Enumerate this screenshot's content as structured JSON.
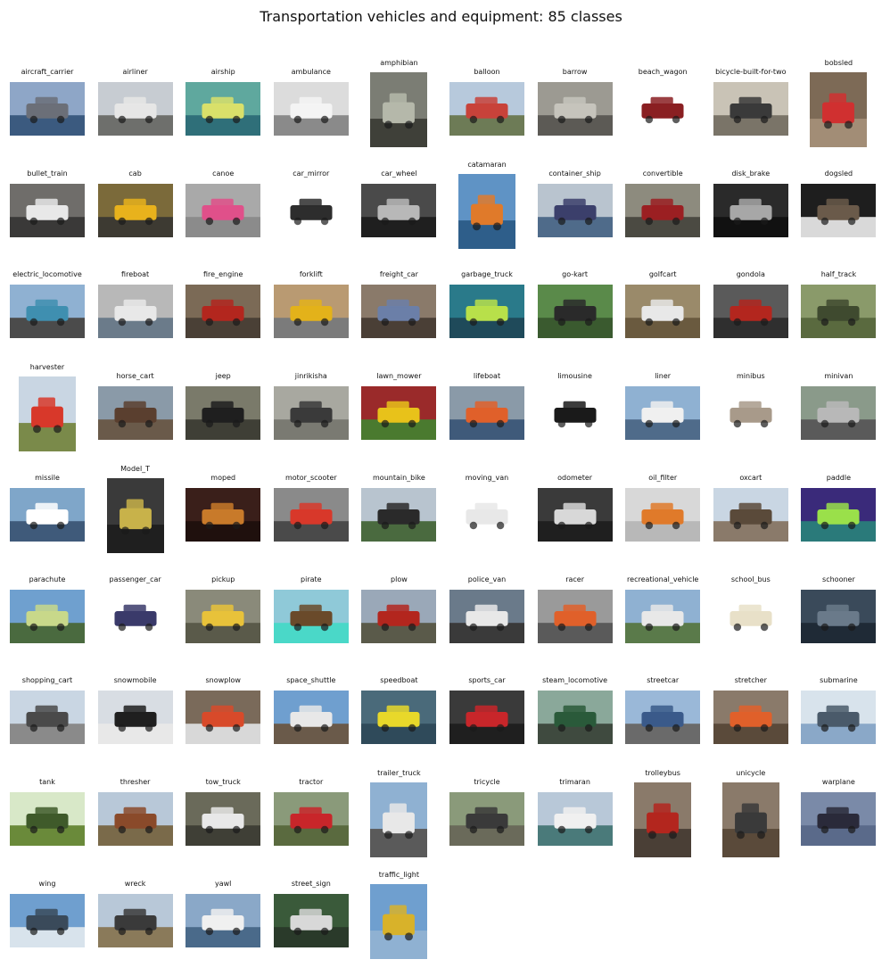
{
  "figure": {
    "title": "Transportation vehicles and equipment: 85 classes"
  },
  "grid": {
    "columns": 10,
    "items": [
      {
        "label": "aircraft_carrier",
        "shape": "wide",
        "sky": "#8ea6c7",
        "ground": "#3b5a7f",
        "subject": "#6b6f78",
        "icon": "ship-icon"
      },
      {
        "label": "airliner",
        "shape": "wide",
        "sky": "#c7ccd2",
        "ground": "#6e6f6c",
        "subject": "#e6e6e6",
        "icon": "airplane-icon"
      },
      {
        "label": "airship",
        "shape": "wide",
        "sky": "#5fa89e",
        "ground": "#2f6f79",
        "subject": "#d9e06a",
        "icon": "blimp-icon"
      },
      {
        "label": "ambulance",
        "shape": "wide",
        "sky": "#dcdcdc",
        "ground": "#8a8a8a",
        "subject": "#f4f4f4",
        "icon": "van-icon"
      },
      {
        "label": "amphibian",
        "shape": "tall",
        "sky": "#7b7d74",
        "ground": "#3f4039",
        "subject": "#b5b8aa",
        "icon": "boat-icon"
      },
      {
        "label": "balloon",
        "shape": "wide",
        "sky": "#b7c9dc",
        "ground": "#6d7b56",
        "subject": "#c8423a",
        "icon": "balloon-icon"
      },
      {
        "label": "barrow",
        "shape": "wide",
        "sky": "#9c9a92",
        "ground": "#5c5a55",
        "subject": "#c6c4bc",
        "icon": "barrow-icon"
      },
      {
        "label": "beach_wagon",
        "shape": "wide",
        "sky": "#ffffff",
        "ground": "#ffffff",
        "subject": "#8a1f22",
        "icon": "car-icon"
      },
      {
        "label": "bicycle-built-for-two",
        "shape": "wide",
        "sky": "#c9c3b6",
        "ground": "#7a7468",
        "subject": "#3a3a3a",
        "icon": "bicycle-icon"
      },
      {
        "label": "bobsled",
        "shape": "tall",
        "sky": "#7d6a56",
        "ground": "#a28d76",
        "subject": "#d03030",
        "icon": "sled-icon"
      },
      {
        "label": "bullet_train",
        "shape": "wide",
        "sky": "#6f6d6a",
        "ground": "#3a3938",
        "subject": "#e8e8e8",
        "icon": "train-icon"
      },
      {
        "label": "cab",
        "shape": "wide",
        "sky": "#7b6a3a",
        "ground": "#3d3a32",
        "subject": "#e8b21c",
        "icon": "car-icon"
      },
      {
        "label": "canoe",
        "shape": "wide",
        "sky": "#a9a9a9",
        "ground": "#8b8b8b",
        "subject": "#e0508a",
        "icon": "canoe-icon"
      },
      {
        "label": "car_mirror",
        "shape": "wide",
        "sky": "#ffffff",
        "ground": "#ffffff",
        "subject": "#2d2d2d",
        "icon": "mirror-icon"
      },
      {
        "label": "car_wheel",
        "shape": "wide",
        "sky": "#4a4a4a",
        "ground": "#1f1f1f",
        "subject": "#b8b8b8",
        "icon": "wheel-icon"
      },
      {
        "label": "catamaran",
        "shape": "tall",
        "sky": "#5f93c5",
        "ground": "#2e5e8a",
        "subject": "#e07a2a",
        "icon": "sailboat-icon"
      },
      {
        "label": "container_ship",
        "shape": "wide",
        "sky": "#b9c4cf",
        "ground": "#4f6b8a",
        "subject": "#3b3f6b",
        "icon": "ship-icon"
      },
      {
        "label": "convertible",
        "shape": "wide",
        "sky": "#8d8b7e",
        "ground": "#4b4a42",
        "subject": "#9b1f22",
        "icon": "car-icon"
      },
      {
        "label": "disk_brake",
        "shape": "wide",
        "sky": "#2a2a2a",
        "ground": "#111111",
        "subject": "#a7a7a7",
        "icon": "brake-icon"
      },
      {
        "label": "dogsled",
        "shape": "wide",
        "sky": "#1e1e1e",
        "ground": "#d9d9d9",
        "subject": "#6a5a4a",
        "icon": "dog-icon"
      },
      {
        "label": "electric_locomotive",
        "shape": "wide",
        "sky": "#8fb1d2",
        "ground": "#4b4b4b",
        "subject": "#3f8fb0",
        "icon": "train-icon"
      },
      {
        "label": "fireboat",
        "shape": "wide",
        "sky": "#b8b8b8",
        "ground": "#6b7b8a",
        "subject": "#e8e8e8",
        "icon": "boat-icon"
      },
      {
        "label": "fire_engine",
        "shape": "wide",
        "sky": "#7b6a56",
        "ground": "#4a4036",
        "subject": "#b3261e",
        "icon": "truck-icon"
      },
      {
        "label": "forklift",
        "shape": "wide",
        "sky": "#b99a72",
        "ground": "#7b7b7b",
        "subject": "#e3b21a",
        "icon": "forklift-icon"
      },
      {
        "label": "freight_car",
        "shape": "wide",
        "sky": "#8a7a6a",
        "ground": "#4a3f36",
        "subject": "#6b7fa8",
        "icon": "railcar-icon"
      },
      {
        "label": "garbage_truck",
        "shape": "wide",
        "sky": "#2a7a8a",
        "ground": "#1f4a5a",
        "subject": "#b8e04a",
        "icon": "truck-icon"
      },
      {
        "label": "go-kart",
        "shape": "wide",
        "sky": "#5a8a4a",
        "ground": "#3a5a2f",
        "subject": "#2a2a2a",
        "icon": "kart-icon"
      },
      {
        "label": "golfcart",
        "shape": "wide",
        "sky": "#9a8a6a",
        "ground": "#6a5a3f",
        "subject": "#e8e8e8",
        "icon": "cart-icon"
      },
      {
        "label": "gondola",
        "shape": "wide",
        "sky": "#5a5a5a",
        "ground": "#2f2f2f",
        "subject": "#b3261e",
        "icon": "gondola-icon"
      },
      {
        "label": "half_track",
        "shape": "wide",
        "sky": "#8a9a6a",
        "ground": "#5a6a3f",
        "subject": "#3f4a2f",
        "icon": "tank-icon"
      },
      {
        "label": "harvester",
        "shape": "tall",
        "sky": "#c9d6e3",
        "ground": "#7a8a4a",
        "subject": "#d8382a",
        "icon": "harvester-icon"
      },
      {
        "label": "horse_cart",
        "shape": "wide",
        "sky": "#8a9aa8",
        "ground": "#6a5a4a",
        "subject": "#5a3f2f",
        "icon": "horse-icon"
      },
      {
        "label": "jeep",
        "shape": "wide",
        "sky": "#7a7a6a",
        "ground": "#3f3f36",
        "subject": "#1f1f1f",
        "icon": "car-icon"
      },
      {
        "label": "jinrikisha",
        "shape": "wide",
        "sky": "#a8a8a0",
        "ground": "#7a7a72",
        "subject": "#3a3a3a",
        "icon": "rickshaw-icon"
      },
      {
        "label": "lawn_mower",
        "shape": "wide",
        "sky": "#9a2a2a",
        "ground": "#4a7a2f",
        "subject": "#e8c21a",
        "icon": "mower-icon"
      },
      {
        "label": "lifeboat",
        "shape": "wide",
        "sky": "#8a9aa8",
        "ground": "#3f5a7a",
        "subject": "#e0602a",
        "icon": "boat-icon"
      },
      {
        "label": "limousine",
        "shape": "wide",
        "sky": "#ffffff",
        "ground": "#ffffff",
        "subject": "#1a1a1a",
        "icon": "car-icon"
      },
      {
        "label": "liner",
        "shape": "wide",
        "sky": "#8fb1d2",
        "ground": "#4f6b8a",
        "subject": "#f0f0f0",
        "icon": "ship-icon"
      },
      {
        "label": "minibus",
        "shape": "wide",
        "sky": "#ffffff",
        "ground": "#ffffff",
        "subject": "#a89a8a",
        "icon": "van-icon"
      },
      {
        "label": "minivan",
        "shape": "wide",
        "sky": "#8a9a8a",
        "ground": "#5a5a5a",
        "subject": "#b8b8b8",
        "icon": "van-icon"
      },
      {
        "label": "missile",
        "shape": "wide",
        "sky": "#7fa6c9",
        "ground": "#3f5a7a",
        "subject": "#ffffff",
        "icon": "missile-icon"
      },
      {
        "label": "Model_T",
        "shape": "tall",
        "sky": "#3a3a3a",
        "ground": "#1f1f1f",
        "subject": "#c8b24a",
        "icon": "car-icon"
      },
      {
        "label": "moped",
        "shape": "wide",
        "sky": "#3a1f1a",
        "ground": "#1f100d",
        "subject": "#c87a2a",
        "icon": "scooter-icon"
      },
      {
        "label": "motor_scooter",
        "shape": "wide",
        "sky": "#8a8a8a",
        "ground": "#4a4a4a",
        "subject": "#d8382a",
        "icon": "scooter-icon"
      },
      {
        "label": "mountain_bike",
        "shape": "wide",
        "sky": "#b8c4cf",
        "ground": "#4a6a3f",
        "subject": "#2a2a2a",
        "icon": "bicycle-icon"
      },
      {
        "label": "moving_van",
        "shape": "wide",
        "sky": "#ffffff",
        "ground": "#ffffff",
        "subject": "#e8e8e8",
        "icon": "truck-icon"
      },
      {
        "label": "odometer",
        "shape": "wide",
        "sky": "#3a3a3a",
        "ground": "#1f1f1f",
        "subject": "#d8d8d8",
        "icon": "gauge-icon"
      },
      {
        "label": "oil_filter",
        "shape": "wide",
        "sky": "#d8d8d8",
        "ground": "#b8b8b8",
        "subject": "#e07a2a",
        "icon": "filter-icon"
      },
      {
        "label": "oxcart",
        "shape": "wide",
        "sky": "#c9d6e3",
        "ground": "#8a7a6a",
        "subject": "#5a4a3a",
        "icon": "ox-icon"
      },
      {
        "label": "paddle",
        "shape": "wide",
        "sky": "#3a2a7a",
        "ground": "#2a7a7a",
        "subject": "#9ae04a",
        "icon": "paddle-icon"
      },
      {
        "label": "parachute",
        "shape": "wide",
        "sky": "#6fa0cf",
        "ground": "#4a6a3f",
        "subject": "#c8d88a",
        "icon": "parachute-icon"
      },
      {
        "label": "passenger_car",
        "shape": "wide",
        "sky": "#ffffff",
        "ground": "#ffffff",
        "subject": "#3a3a6a",
        "icon": "railcar-icon"
      },
      {
        "label": "pickup",
        "shape": "wide",
        "sky": "#8a8a7a",
        "ground": "#5a5a4a",
        "subject": "#e8c23a",
        "icon": "car-icon"
      },
      {
        "label": "pirate",
        "shape": "wide",
        "sky": "#8fc9d8",
        "ground": "#4ad8c8",
        "subject": "#6a4a2a",
        "icon": "sailboat-icon"
      },
      {
        "label": "plow",
        "shape": "wide",
        "sky": "#9aa8b8",
        "ground": "#5a5a4a",
        "subject": "#b3261e",
        "icon": "plow-icon"
      },
      {
        "label": "police_van",
        "shape": "wide",
        "sky": "#6a7a8a",
        "ground": "#3a3a3a",
        "subject": "#e8e8e8",
        "icon": "van-icon"
      },
      {
        "label": "racer",
        "shape": "wide",
        "sky": "#9a9a9a",
        "ground": "#5a5a5a",
        "subject": "#e0602a",
        "icon": "car-icon"
      },
      {
        "label": "recreational_vehicle",
        "shape": "wide",
        "sky": "#8fb1d2",
        "ground": "#5a7a4a",
        "subject": "#e8e8e8",
        "icon": "rv-icon"
      },
      {
        "label": "school_bus",
        "shape": "wide",
        "sky": "#ffffff",
        "ground": "#ffffff",
        "subject": "#e8e0c8",
        "icon": "bus-icon"
      },
      {
        "label": "schooner",
        "shape": "wide",
        "sky": "#3a4a5a",
        "ground": "#1f2a36",
        "subject": "#6a7a8a",
        "icon": "sailboat-icon"
      },
      {
        "label": "shopping_cart",
        "shape": "wide",
        "sky": "#c9d6e3",
        "ground": "#8a8a8a",
        "subject": "#4a4a4a",
        "icon": "cart-icon"
      },
      {
        "label": "snowmobile",
        "shape": "wide",
        "sky": "#d8dde3",
        "ground": "#e8e8e8",
        "subject": "#1f1f1f",
        "icon": "snowmobile-icon"
      },
      {
        "label": "snowplow",
        "shape": "wide",
        "sky": "#7a6a5a",
        "ground": "#d8d8d8",
        "subject": "#d84a2a",
        "icon": "plow-icon"
      },
      {
        "label": "space_shuttle",
        "shape": "wide",
        "sky": "#6f9fcf",
        "ground": "#6a5a4a",
        "subject": "#e8e8e8",
        "icon": "shuttle-icon"
      },
      {
        "label": "speedboat",
        "shape": "wide",
        "sky": "#4a6a7a",
        "ground": "#2f4a5a",
        "subject": "#e8d82a",
        "icon": "boat-icon"
      },
      {
        "label": "sports_car",
        "shape": "wide",
        "sky": "#3a3a3a",
        "ground": "#1f1f1f",
        "subject": "#c8262a",
        "icon": "car-icon"
      },
      {
        "label": "steam_locomotive",
        "shape": "wide",
        "sky": "#8aa89a",
        "ground": "#3f4a3f",
        "subject": "#2a5a3a",
        "icon": "train-icon"
      },
      {
        "label": "streetcar",
        "shape": "wide",
        "sky": "#9ab8d8",
        "ground": "#6a6a6a",
        "subject": "#3a5a8a",
        "icon": "tram-icon"
      },
      {
        "label": "stretcher",
        "shape": "wide",
        "sky": "#8a7a6a",
        "ground": "#5a4a3a",
        "subject": "#e0602a",
        "icon": "stretcher-icon"
      },
      {
        "label": "submarine",
        "shape": "wide",
        "sky": "#d8e3ec",
        "ground": "#8aa8c8",
        "subject": "#4a5a6a",
        "icon": "submarine-icon"
      },
      {
        "label": "tank",
        "shape": "wide",
        "sky": "#d8e8c8",
        "ground": "#6a8a3a",
        "subject": "#3f5a2a",
        "icon": "tank-icon"
      },
      {
        "label": "thresher",
        "shape": "wide",
        "sky": "#b8c8d8",
        "ground": "#7a6a4a",
        "subject": "#8a4a2a",
        "icon": "harvester-icon"
      },
      {
        "label": "tow_truck",
        "shape": "wide",
        "sky": "#6a6a5a",
        "ground": "#3f3f36",
        "subject": "#e8e8e8",
        "icon": "truck-icon"
      },
      {
        "label": "tractor",
        "shape": "wide",
        "sky": "#8a9a7a",
        "ground": "#5a6a3f",
        "subject": "#c8262a",
        "icon": "tractor-icon"
      },
      {
        "label": "trailer_truck",
        "shape": "tall",
        "sky": "#8fb1d2",
        "ground": "#5a5a5a",
        "subject": "#e8e8e8",
        "icon": "truck-icon"
      },
      {
        "label": "tricycle",
        "shape": "wide",
        "sky": "#8a9a7a",
        "ground": "#6a6a5a",
        "subject": "#3a3a3a",
        "icon": "tricycle-icon"
      },
      {
        "label": "trimaran",
        "shape": "wide",
        "sky": "#b8c8d8",
        "ground": "#4a7a7a",
        "subject": "#f0f0f0",
        "icon": "sailboat-icon"
      },
      {
        "label": "trolleybus",
        "shape": "tall",
        "sky": "#8a7a6a",
        "ground": "#4a3f36",
        "subject": "#b3261e",
        "icon": "bus-icon"
      },
      {
        "label": "unicycle",
        "shape": "tall",
        "sky": "#8a7a6a",
        "ground": "#5a4a3a",
        "subject": "#3a3a3a",
        "icon": "unicycle-icon"
      },
      {
        "label": "warplane",
        "shape": "wide",
        "sky": "#7a8aa8",
        "ground": "#5a6a8a",
        "subject": "#2a2a3a",
        "icon": "airplane-icon"
      },
      {
        "label": "wing",
        "shape": "wide",
        "sky": "#6f9fcf",
        "ground": "#d8e3ec",
        "subject": "#3a4a5a",
        "icon": "wing-icon"
      },
      {
        "label": "wreck",
        "shape": "wide",
        "sky": "#b8c8d8",
        "ground": "#8a7a5a",
        "subject": "#3a3a3a",
        "icon": "wreck-icon"
      },
      {
        "label": "yawl",
        "shape": "wide",
        "sky": "#8aa8c8",
        "ground": "#4a6a8a",
        "subject": "#f0f0f0",
        "icon": "sailboat-icon"
      },
      {
        "label": "street_sign",
        "shape": "wide",
        "sky": "#3a5a3a",
        "ground": "#2a3a2a",
        "subject": "#d8d8d8",
        "icon": "sign-icon"
      },
      {
        "label": "traffic_light",
        "shape": "tall",
        "sky": "#6f9fcf",
        "ground": "#8fb1d2",
        "subject": "#d8b22a",
        "icon": "traffic-light-icon"
      }
    ]
  }
}
